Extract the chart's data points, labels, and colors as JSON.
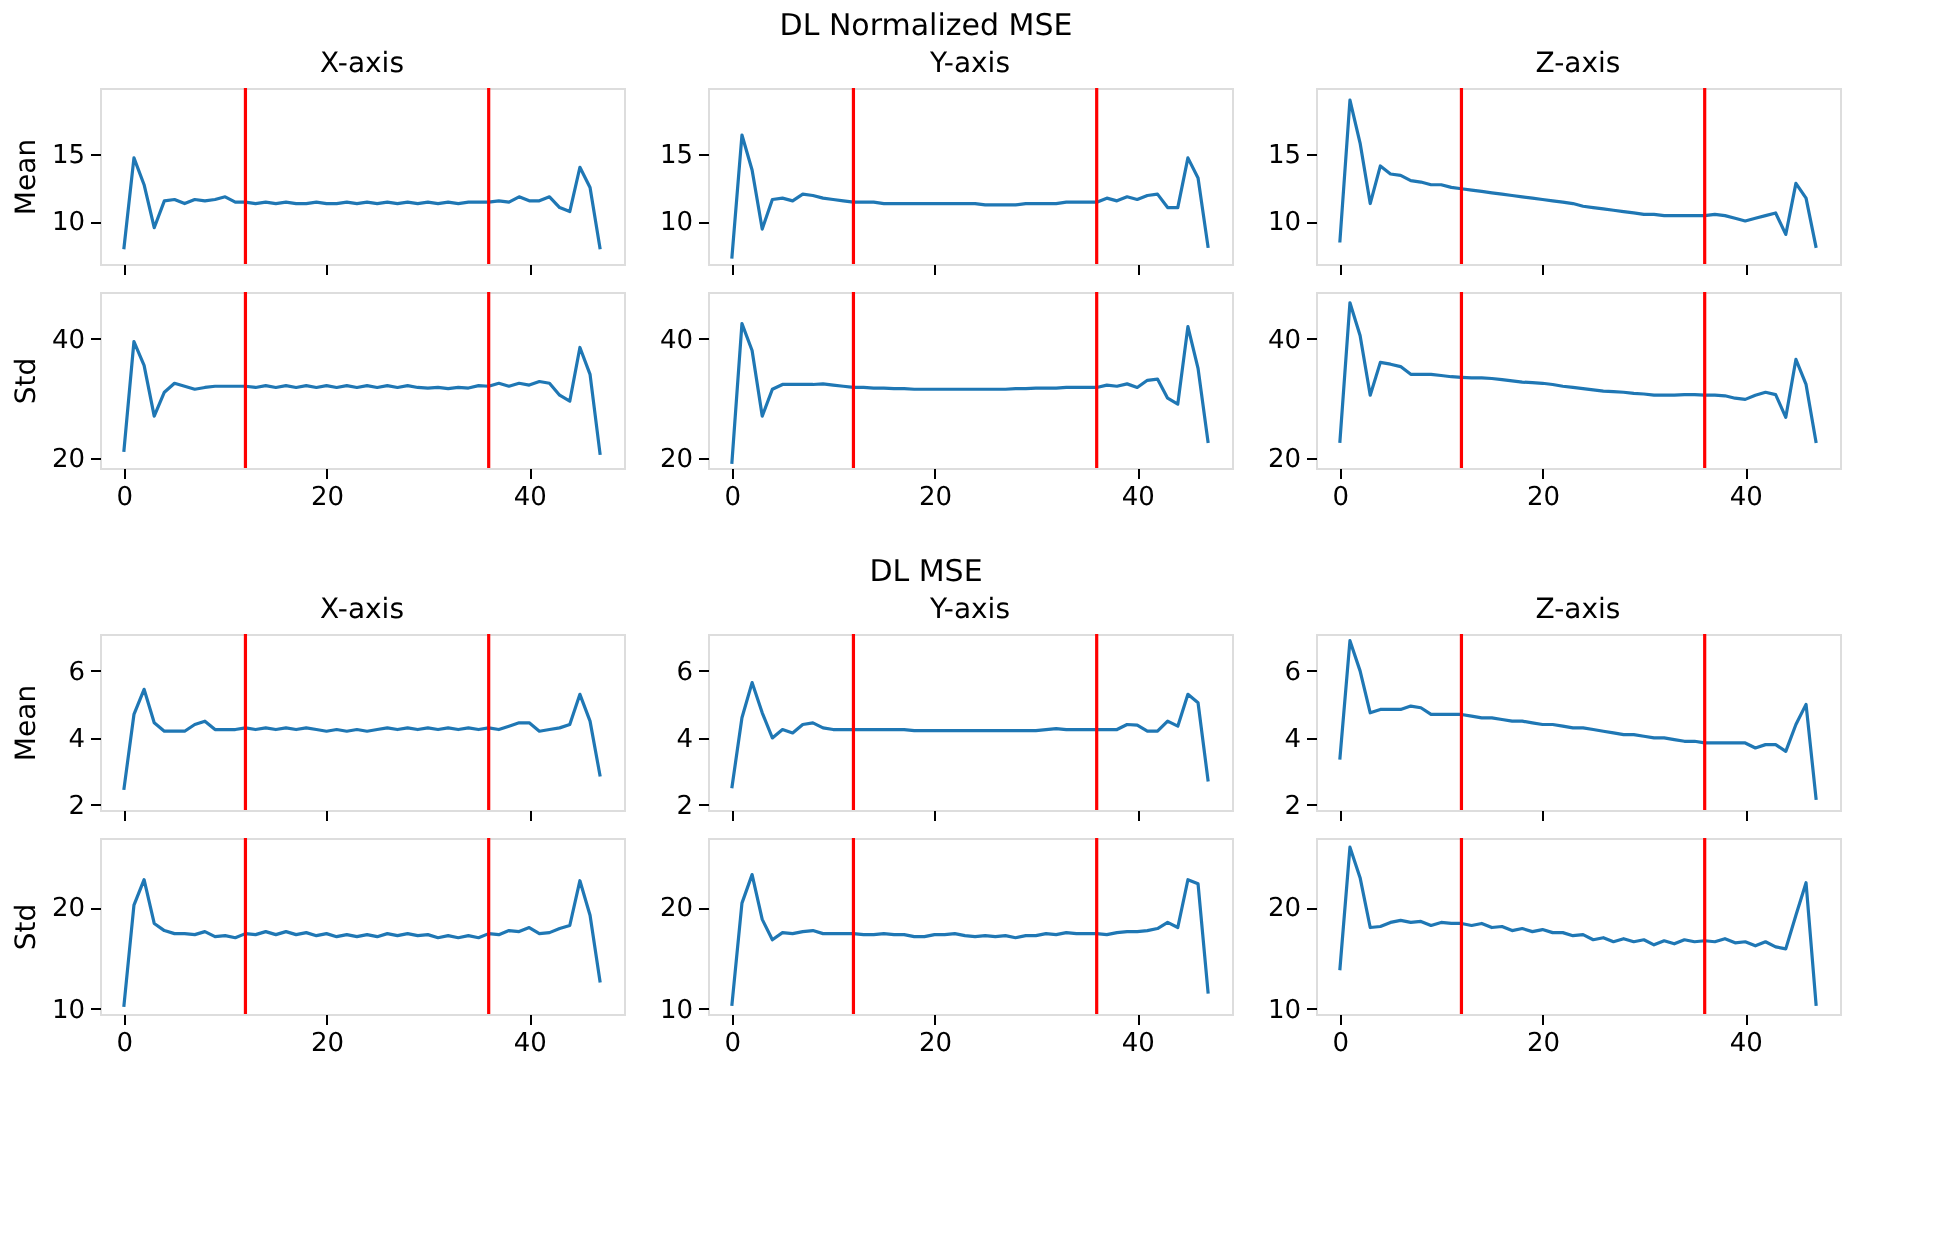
{
  "chart_data": [
    {
      "type": "line",
      "title": "X-axis",
      "ylabel": "Mean",
      "annotations": [
        "DL Normalized MSE"
      ],
      "color": "#1f77b4",
      "categories": [
        null,
        null,
        null,
        null,
        null,
        null,
        null,
        null,
        null,
        null,
        null,
        null,
        null,
        null,
        null,
        null,
        null,
        null,
        null,
        null,
        null,
        null,
        null,
        null,
        null,
        null,
        null,
        null,
        null,
        null,
        null,
        null,
        null,
        null,
        null,
        null,
        null,
        null,
        null,
        null,
        null,
        null,
        null,
        null,
        null,
        null,
        null,
        null
      ],
      "values": [
        7.9,
        14.7,
        12.7,
        9.5,
        11.5,
        11.6,
        11.3,
        11.6,
        11.5,
        11.6,
        11.8,
        11.4,
        11.4,
        11.3,
        11.4,
        11.3,
        11.4,
        11.3,
        11.3,
        11.4,
        11.3,
        11.3,
        11.4,
        11.3,
        11.4,
        11.3,
        11.4,
        11.3,
        11.4,
        11.3,
        11.4,
        11.3,
        11.4,
        11.3,
        11.4,
        11.4,
        11.4,
        11.5,
        11.4,
        11.8,
        11.5,
        11.5,
        11.8,
        11.0,
        10.7,
        14.0,
        12.5,
        7.9
      ],
      "ylim": [
        6.8,
        19.9
      ],
      "yticks": [
        10,
        15
      ],
      "tick_labels": "y"
    },
    {
      "type": "line",
      "ylabel": "Std",
      "color": "#1f77b4",
      "x": [
        0,
        1,
        2,
        3,
        4,
        5,
        6,
        7,
        8,
        9,
        10,
        11,
        12,
        13,
        14,
        15,
        16,
        17,
        18,
        19,
        20,
        21,
        22,
        23,
        24,
        25,
        26,
        27,
        28,
        29,
        30,
        31,
        32,
        33,
        34,
        35,
        36,
        37,
        38,
        39,
        40,
        41,
        42,
        43,
        44,
        45,
        46,
        47
      ],
      "values": [
        21,
        39.5,
        35.5,
        27,
        31,
        32.5,
        32,
        31.5,
        31.8,
        32,
        32,
        32,
        32,
        31.8,
        32.1,
        31.8,
        32.1,
        31.8,
        32.1,
        31.8,
        32.1,
        31.8,
        32.1,
        31.8,
        32.1,
        31.8,
        32.1,
        31.8,
        32.1,
        31.8,
        31.7,
        31.8,
        31.6,
        31.8,
        31.7,
        32.1,
        32,
        32.5,
        32,
        32.5,
        32.2,
        32.8,
        32.5,
        30.5,
        29.5,
        38.5,
        34,
        20.5
      ],
      "xlim": [
        -2.35,
        49.35
      ],
      "xticks": [
        0,
        20,
        40
      ],
      "ylim": [
        18.3,
        47.8
      ],
      "yticks": [
        20,
        40
      ],
      "ref_lines": [
        {
          "axis": "x",
          "value": 12,
          "color": "#ff0000"
        },
        {
          "axis": "x",
          "value": 36,
          "color": "#ff0000"
        }
      ]
    },
    {
      "type": "line",
      "title": "Y-axis",
      "color": "#1f77b4",
      "categories": [
        null,
        null,
        null,
        null,
        null,
        null,
        null,
        null,
        null,
        null,
        null,
        null,
        null,
        null,
        null,
        null,
        null,
        null,
        null,
        null,
        null,
        null,
        null,
        null,
        null,
        null,
        null,
        null,
        null,
        null,
        null,
        null,
        null,
        null,
        null,
        null,
        null,
        null,
        null,
        null,
        null,
        null,
        null,
        null,
        null,
        null,
        null,
        null
      ],
      "values": [
        7.2,
        16.4,
        13.8,
        9.4,
        11.6,
        11.7,
        11.5,
        12.0,
        11.9,
        11.7,
        11.6,
        11.5,
        11.4,
        11.4,
        11.4,
        11.3,
        11.3,
        11.3,
        11.3,
        11.3,
        11.3,
        11.3,
        11.3,
        11.3,
        11.3,
        11.2,
        11.2,
        11.2,
        11.2,
        11.3,
        11.3,
        11.3,
        11.3,
        11.4,
        11.4,
        11.4,
        11.4,
        11.7,
        11.5,
        11.8,
        11.6,
        11.9,
        12.0,
        11.0,
        11.0,
        14.7,
        13.2,
        8.0
      ],
      "ylim": [
        6.8,
        19.9
      ],
      "yticks": [
        10,
        15
      ],
      "tick_labels": "y"
    },
    {
      "type": "line",
      "color": "#1f77b4",
      "x": [
        0,
        1,
        2,
        3,
        4,
        5,
        6,
        7,
        8,
        9,
        10,
        11,
        12,
        13,
        14,
        15,
        16,
        17,
        18,
        19,
        20,
        21,
        22,
        23,
        24,
        25,
        26,
        27,
        28,
        29,
        30,
        31,
        32,
        33,
        34,
        35,
        36,
        37,
        38,
        39,
        40,
        41,
        42,
        43,
        44,
        45,
        46,
        47
      ],
      "values": [
        19,
        42.5,
        38,
        27,
        31.5,
        32.3,
        32.3,
        32.3,
        32.3,
        32.4,
        32.2,
        32,
        31.8,
        31.8,
        31.7,
        31.7,
        31.6,
        31.6,
        31.5,
        31.5,
        31.5,
        31.5,
        31.5,
        31.5,
        31.5,
        31.5,
        31.5,
        31.5,
        31.6,
        31.6,
        31.7,
        31.7,
        31.7,
        31.8,
        31.8,
        31.8,
        31.8,
        32.2,
        32,
        32.4,
        31.8,
        33,
        33.2,
        30,
        29,
        42,
        35,
        22.5
      ],
      "xlim": [
        -2.35,
        49.35
      ],
      "xticks": [
        0,
        20,
        40
      ],
      "ylim": [
        18.3,
        47.8
      ],
      "yticks": [
        20,
        40
      ],
      "ref_lines": [
        {
          "axis": "x",
          "value": 12,
          "color": "#ff0000"
        },
        {
          "axis": "x",
          "value": 36,
          "color": "#ff0000"
        }
      ]
    },
    {
      "type": "line",
      "title": "Z-axis",
      "color": "#1f77b4",
      "categories": [
        null,
        null,
        null,
        null,
        null,
        null,
        null,
        null,
        null,
        null,
        null,
        null,
        null,
        null,
        null,
        null,
        null,
        null,
        null,
        null,
        null,
        null,
        null,
        null,
        null,
        null,
        null,
        null,
        null,
        null,
        null,
        null,
        null,
        null,
        null,
        null,
        null,
        null,
        null,
        null,
        null,
        null,
        null,
        null,
        null,
        null,
        null,
        null
      ],
      "values": [
        8.4,
        19.0,
        15.8,
        11.3,
        14.1,
        13.5,
        13.4,
        13.0,
        12.9,
        12.7,
        12.7,
        12.5,
        12.4,
        12.3,
        12.2,
        12.1,
        12.0,
        11.9,
        11.8,
        11.7,
        11.6,
        11.5,
        11.4,
        11.3,
        11.1,
        11.0,
        10.9,
        10.8,
        10.7,
        10.6,
        10.5,
        10.5,
        10.4,
        10.4,
        10.4,
        10.4,
        10.4,
        10.5,
        10.4,
        10.2,
        10.0,
        10.2,
        10.4,
        10.6,
        9.0,
        12.8,
        11.7,
        8.0
      ],
      "ylim": [
        6.8,
        19.9
      ],
      "yticks": [
        10,
        15
      ],
      "tick_labels": "y"
    },
    {
      "type": "line",
      "color": "#1f77b4",
      "x": [
        0,
        1,
        2,
        3,
        4,
        5,
        6,
        7,
        8,
        9,
        10,
        11,
        12,
        13,
        14,
        15,
        16,
        17,
        18,
        19,
        20,
        21,
        22,
        23,
        24,
        25,
        26,
        27,
        28,
        29,
        30,
        31,
        32,
        33,
        34,
        35,
        36,
        37,
        38,
        39,
        40,
        41,
        42,
        43,
        44,
        45,
        46,
        47
      ],
      "values": [
        22.5,
        46,
        40.5,
        30.5,
        36,
        35.7,
        35.3,
        34,
        34,
        34,
        33.8,
        33.6,
        33.5,
        33.4,
        33.4,
        33.3,
        33.1,
        32.9,
        32.7,
        32.6,
        32.5,
        32.3,
        32.0,
        31.8,
        31.6,
        31.4,
        31.2,
        31.1,
        31.0,
        30.8,
        30.7,
        30.5,
        30.5,
        30.5,
        30.6,
        30.6,
        30.5,
        30.5,
        30.4,
        30.0,
        29.8,
        30.5,
        31,
        30.6,
        26.8,
        36.5,
        32.3,
        22.5
      ],
      "xlim": [
        -2.35,
        49.35
      ],
      "xticks": [
        0,
        20,
        40
      ],
      "ylim": [
        18.3,
        47.8
      ],
      "yticks": [
        20,
        40
      ],
      "ref_lines": [
        {
          "axis": "x",
          "value": 12,
          "color": "#ff0000"
        },
        {
          "axis": "x",
          "value": 36,
          "color": "#ff0000"
        }
      ]
    },
    {
      "type": "line",
      "title": "X-axis",
      "ylabel": "Mean",
      "annotations": [
        "DL MSE"
      ],
      "color": "#1f77b4",
      "categories": [
        null,
        null,
        null,
        null,
        null,
        null,
        null,
        null,
        null,
        null,
        null,
        null,
        null,
        null,
        null,
        null,
        null,
        null,
        null,
        null,
        null,
        null,
        null,
        null,
        null,
        null,
        null,
        null,
        null,
        null,
        null,
        null,
        null,
        null,
        null,
        null,
        null,
        null,
        null,
        null,
        null,
        null,
        null,
        null,
        null,
        null,
        null,
        null
      ],
      "values": [
        2.45,
        4.7,
        5.45,
        4.45,
        4.2,
        4.2,
        4.2,
        4.4,
        4.5,
        4.25,
        4.25,
        4.25,
        4.3,
        4.25,
        4.3,
        4.25,
        4.3,
        4.25,
        4.3,
        4.25,
        4.2,
        4.25,
        4.2,
        4.25,
        4.2,
        4.25,
        4.3,
        4.25,
        4.3,
        4.25,
        4.3,
        4.25,
        4.3,
        4.25,
        4.3,
        4.25,
        4.3,
        4.25,
        4.35,
        4.45,
        4.45,
        4.2,
        4.25,
        4.3,
        4.4,
        5.3,
        4.5,
        2.85
      ],
      "ylim": [
        1.85,
        7.1
      ],
      "yticks": [
        2,
        4,
        6
      ],
      "tick_labels": "y"
    },
    {
      "type": "line",
      "ylabel": "Std",
      "color": "#1f77b4",
      "x": [
        0,
        1,
        2,
        3,
        4,
        5,
        6,
        7,
        8,
        9,
        10,
        11,
        12,
        13,
        14,
        15,
        16,
        17,
        18,
        19,
        20,
        21,
        22,
        23,
        24,
        25,
        26,
        27,
        28,
        29,
        30,
        31,
        32,
        33,
        34,
        35,
        36,
        37,
        38,
        39,
        40,
        41,
        42,
        43,
        44,
        45,
        46,
        47
      ],
      "values": [
        10.2,
        20.2,
        22.7,
        18.4,
        17.7,
        17.4,
        17.4,
        17.3,
        17.6,
        17.1,
        17.2,
        17.0,
        17.4,
        17.3,
        17.6,
        17.3,
        17.6,
        17.3,
        17.5,
        17.2,
        17.4,
        17.1,
        17.3,
        17.1,
        17.3,
        17.1,
        17.4,
        17.2,
        17.4,
        17.2,
        17.3,
        17.0,
        17.2,
        17.0,
        17.2,
        17.0,
        17.4,
        17.3,
        17.7,
        17.6,
        18.0,
        17.4,
        17.5,
        17.9,
        18.2,
        22.6,
        19.2,
        12.6
      ],
      "xlim": [
        -2.35,
        49.35
      ],
      "xticks": [
        0,
        20,
        40
      ],
      "ylim": [
        9.5,
        26.8
      ],
      "yticks": [
        10,
        20
      ],
      "ref_lines": [
        {
          "axis": "x",
          "value": 12,
          "color": "#ff0000"
        },
        {
          "axis": "x",
          "value": 36,
          "color": "#ff0000"
        }
      ]
    },
    {
      "type": "line",
      "title": "Y-axis",
      "color": "#1f77b4",
      "categories": [
        null,
        null,
        null,
        null,
        null,
        null,
        null,
        null,
        null,
        null,
        null,
        null,
        null,
        null,
        null,
        null,
        null,
        null,
        null,
        null,
        null,
        null,
        null,
        null,
        null,
        null,
        null,
        null,
        null,
        null,
        null,
        null,
        null,
        null,
        null,
        null,
        null,
        null,
        null,
        null,
        null,
        null,
        null,
        null,
        null,
        null,
        null,
        null
      ],
      "values": [
        2.5,
        4.6,
        5.65,
        4.75,
        4.0,
        4.25,
        4.15,
        4.4,
        4.45,
        4.3,
        4.25,
        4.25,
        4.25,
        4.25,
        4.25,
        4.25,
        4.25,
        4.25,
        4.22,
        4.22,
        4.22,
        4.22,
        4.22,
        4.22,
        4.22,
        4.22,
        4.22,
        4.22,
        4.22,
        4.22,
        4.22,
        4.25,
        4.28,
        4.25,
        4.25,
        4.25,
        4.25,
        4.25,
        4.25,
        4.4,
        4.38,
        4.2,
        4.2,
        4.5,
        4.35,
        5.3,
        5.05,
        2.7
      ],
      "ylim": [
        1.85,
        7.1
      ],
      "yticks": [
        2,
        4,
        6
      ],
      "tick_labels": "y"
    },
    {
      "type": "line",
      "color": "#1f77b4",
      "x": [
        0,
        1,
        2,
        3,
        4,
        5,
        6,
        7,
        8,
        9,
        10,
        11,
        12,
        13,
        14,
        15,
        16,
        17,
        18,
        19,
        20,
        21,
        22,
        23,
        24,
        25,
        26,
        27,
        28,
        29,
        30,
        31,
        32,
        33,
        34,
        35,
        36,
        37,
        38,
        39,
        40,
        41,
        42,
        43,
        44,
        45,
        46,
        47
      ],
      "values": [
        10.3,
        20.4,
        23.2,
        18.8,
        16.8,
        17.5,
        17.4,
        17.6,
        17.7,
        17.4,
        17.4,
        17.4,
        17.4,
        17.3,
        17.3,
        17.4,
        17.3,
        17.3,
        17.1,
        17.1,
        17.3,
        17.3,
        17.4,
        17.2,
        17.1,
        17.2,
        17.1,
        17.2,
        17.0,
        17.2,
        17.2,
        17.4,
        17.3,
        17.5,
        17.4,
        17.4,
        17.4,
        17.3,
        17.5,
        17.6,
        17.6,
        17.7,
        17.9,
        18.5,
        18.0,
        22.7,
        22.3,
        11.5
      ],
      "xlim": [
        -2.35,
        49.35
      ],
      "xticks": [
        0,
        20,
        40
      ],
      "ylim": [
        9.5,
        26.8
      ],
      "yticks": [
        10,
        20
      ],
      "ref_lines": [
        {
          "axis": "x",
          "value": 12,
          "color": "#ff0000"
        },
        {
          "axis": "x",
          "value": 36,
          "color": "#ff0000"
        }
      ]
    },
    {
      "type": "line",
      "title": "Z-axis",
      "color": "#1f77b4",
      "categories": [
        null,
        null,
        null,
        null,
        null,
        null,
        null,
        null,
        null,
        null,
        null,
        null,
        null,
        null,
        null,
        null,
        null,
        null,
        null,
        null,
        null,
        null,
        null,
        null,
        null,
        null,
        null,
        null,
        null,
        null,
        null,
        null,
        null,
        null,
        null,
        null,
        null,
        null,
        null,
        null,
        null,
        null,
        null,
        null,
        null,
        null,
        null,
        null
      ],
      "values": [
        3.35,
        6.9,
        6.0,
        4.75,
        4.85,
        4.85,
        4.85,
        4.95,
        4.9,
        4.7,
        4.7,
        4.7,
        4.7,
        4.65,
        4.6,
        4.6,
        4.55,
        4.5,
        4.5,
        4.45,
        4.4,
        4.4,
        4.35,
        4.3,
        4.3,
        4.25,
        4.2,
        4.15,
        4.1,
        4.1,
        4.05,
        4.0,
        4.0,
        3.95,
        3.9,
        3.9,
        3.85,
        3.85,
        3.85,
        3.85,
        3.85,
        3.7,
        3.8,
        3.8,
        3.6,
        4.4,
        5.0,
        2.15
      ],
      "ylim": [
        1.85,
        7.1
      ],
      "yticks": [
        2,
        4,
        6
      ],
      "tick_labels": "y"
    },
    {
      "type": "line",
      "color": "#1f77b4",
      "x": [
        0,
        1,
        2,
        3,
        4,
        5,
        6,
        7,
        8,
        9,
        10,
        11,
        12,
        13,
        14,
        15,
        16,
        17,
        18,
        19,
        20,
        21,
        22,
        23,
        24,
        25,
        26,
        27,
        28,
        29,
        30,
        31,
        32,
        33,
        34,
        35,
        36,
        37,
        38,
        39,
        40,
        41,
        42,
        43,
        44,
        45,
        46,
        47
      ],
      "values": [
        13.8,
        25.9,
        22.9,
        18.0,
        18.1,
        18.5,
        18.7,
        18.5,
        18.6,
        18.2,
        18.5,
        18.4,
        18.4,
        18.2,
        18.4,
        18.0,
        18.1,
        17.7,
        17.9,
        17.6,
        17.8,
        17.5,
        17.5,
        17.2,
        17.3,
        16.8,
        17.0,
        16.6,
        16.9,
        16.6,
        16.8,
        16.3,
        16.7,
        16.4,
        16.8,
        16.6,
        16.7,
        16.6,
        16.9,
        16.5,
        16.6,
        16.2,
        16.6,
        16.1,
        15.9,
        19.2,
        22.4,
        10.3
      ],
      "xlim": [
        -2.35,
        49.35
      ],
      "xticks": [
        0,
        20,
        40
      ],
      "ylim": [
        9.5,
        26.8
      ],
      "yticks": [
        10,
        20
      ],
      "ref_lines": [
        {
          "axis": "x",
          "value": 12,
          "color": "#ff0000"
        },
        {
          "axis": "x",
          "value": 36,
          "color": "#ff0000"
        }
      ]
    }
  ]
}
